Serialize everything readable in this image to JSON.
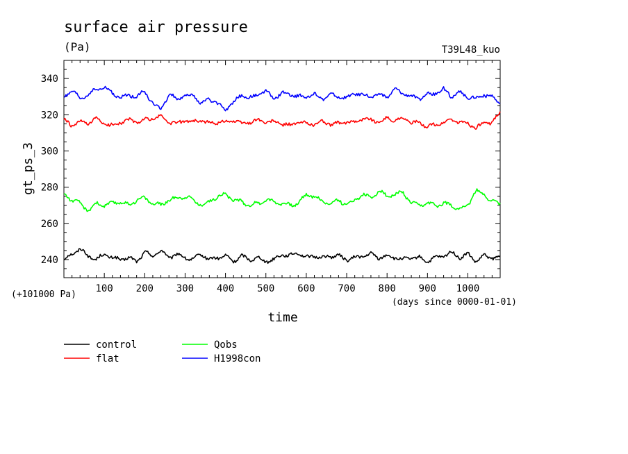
{
  "chart_data": {
    "type": "line",
    "title": "surface air pressure",
    "units": "(Pa)",
    "run_label": "T39L48_kuo",
    "ylabel": "gt_ps_3",
    "xlabel": "time",
    "y_offset_note": "(+101000 Pa)",
    "x_unit_note": "(days since 0000-01-01)",
    "xlim": [
      0,
      1080
    ],
    "ylim": [
      230,
      350
    ],
    "x_ticks": [
      100,
      200,
      300,
      400,
      500,
      600,
      700,
      800,
      900,
      1000
    ],
    "y_ticks": [
      240,
      260,
      280,
      300,
      320,
      340
    ],
    "legend_position": "bottom-left",
    "series": [
      {
        "name": "control",
        "color": "#000000",
        "mean": 241,
        "amp": 2.6,
        "x": [
          0,
          20,
          40,
          60,
          80,
          100,
          120,
          140,
          160,
          180,
          200,
          220,
          240,
          260,
          280,
          300,
          320,
          340,
          360,
          380,
          400,
          420,
          440,
          460,
          480,
          500,
          520,
          540,
          560,
          580,
          600,
          620,
          640,
          660,
          680,
          700,
          720,
          740,
          760,
          780,
          800,
          820,
          840,
          860,
          880,
          900,
          920,
          940,
          960,
          980,
          1000,
          1020,
          1040,
          1060,
          1080
        ],
        "y": [
          240,
          243,
          246,
          242,
          240,
          243,
          241,
          240,
          241,
          239,
          244,
          242,
          245,
          241,
          243,
          241,
          240,
          243,
          240,
          241,
          242,
          239,
          242,
          240,
          241,
          239,
          240,
          243,
          242,
          244,
          241,
          242,
          241,
          242,
          242,
          240,
          241,
          242,
          243,
          241,
          242,
          241,
          240,
          241,
          241,
          239,
          241,
          242,
          244,
          241,
          243,
          239,
          242,
          241,
          241
        ]
      },
      {
        "name": "flat",
        "color": "#ff0000",
        "mean": 316,
        "amp": 2.8,
        "x": [
          0,
          20,
          40,
          60,
          80,
          100,
          120,
          140,
          160,
          180,
          200,
          220,
          240,
          260,
          280,
          300,
          320,
          340,
          360,
          380,
          400,
          420,
          440,
          460,
          480,
          500,
          520,
          540,
          560,
          580,
          600,
          620,
          640,
          660,
          680,
          700,
          720,
          740,
          760,
          780,
          800,
          820,
          840,
          860,
          880,
          900,
          920,
          940,
          960,
          980,
          1000,
          1020,
          1040,
          1060,
          1080
        ],
        "y": [
          317,
          314,
          316,
          315,
          318,
          315,
          314,
          316,
          317,
          316,
          317,
          318,
          319,
          316,
          315,
          317,
          316,
          317,
          315,
          316,
          316,
          317,
          315,
          316,
          317,
          316,
          316,
          315,
          314,
          316,
          315,
          315,
          316,
          315,
          315,
          316,
          316,
          318,
          317,
          316,
          318,
          317,
          318,
          316,
          315,
          314,
          314,
          316,
          317,
          316,
          315,
          313,
          315,
          316,
          321
        ]
      },
      {
        "name": "Qobs",
        "color": "#00ff00",
        "mean": 272,
        "amp": 2.6,
        "x": [
          0,
          20,
          40,
          60,
          80,
          100,
          120,
          140,
          160,
          180,
          200,
          220,
          240,
          260,
          280,
          300,
          320,
          340,
          360,
          380,
          400,
          420,
          440,
          460,
          480,
          500,
          520,
          540,
          560,
          580,
          600,
          620,
          640,
          660,
          680,
          700,
          720,
          740,
          760,
          780,
          800,
          820,
          840,
          860,
          880,
          900,
          920,
          940,
          960,
          980,
          1000,
          1020,
          1040,
          1060,
          1080
        ],
        "y": [
          276,
          273,
          271,
          267,
          271,
          270,
          271,
          272,
          270,
          273,
          274,
          271,
          270,
          273,
          274,
          275,
          273,
          270,
          272,
          275,
          276,
          273,
          272,
          270,
          271,
          273,
          272,
          271,
          270,
          271,
          276,
          275,
          272,
          271,
          273,
          270,
          273,
          276,
          274,
          278,
          275,
          276,
          277,
          271,
          270,
          271,
          270,
          271,
          270,
          268,
          270,
          278,
          276,
          272,
          271
        ]
      },
      {
        "name": "H1998con",
        "color": "#0000ff",
        "mean": 330,
        "amp": 3.2,
        "x": [
          0,
          20,
          40,
          60,
          80,
          100,
          120,
          140,
          160,
          180,
          200,
          220,
          240,
          260,
          280,
          300,
          320,
          340,
          360,
          380,
          400,
          420,
          440,
          460,
          480,
          500,
          520,
          540,
          560,
          580,
          600,
          620,
          640,
          660,
          680,
          700,
          720,
          740,
          760,
          780,
          800,
          820,
          840,
          860,
          880,
          900,
          920,
          940,
          960,
          980,
          1000,
          1020,
          1040,
          1060,
          1080
        ],
        "y": [
          330,
          333,
          329,
          331,
          334,
          335,
          332,
          329,
          331,
          330,
          333,
          326,
          323,
          331,
          329,
          330,
          331,
          326,
          329,
          326,
          323,
          327,
          331,
          329,
          331,
          333,
          329,
          332,
          331,
          330,
          330,
          331,
          329,
          331,
          330,
          329,
          332,
          331,
          330,
          331,
          330,
          334,
          332,
          330,
          329,
          331,
          332,
          334,
          330,
          332,
          330,
          329,
          331,
          330,
          326
        ]
      }
    ]
  }
}
